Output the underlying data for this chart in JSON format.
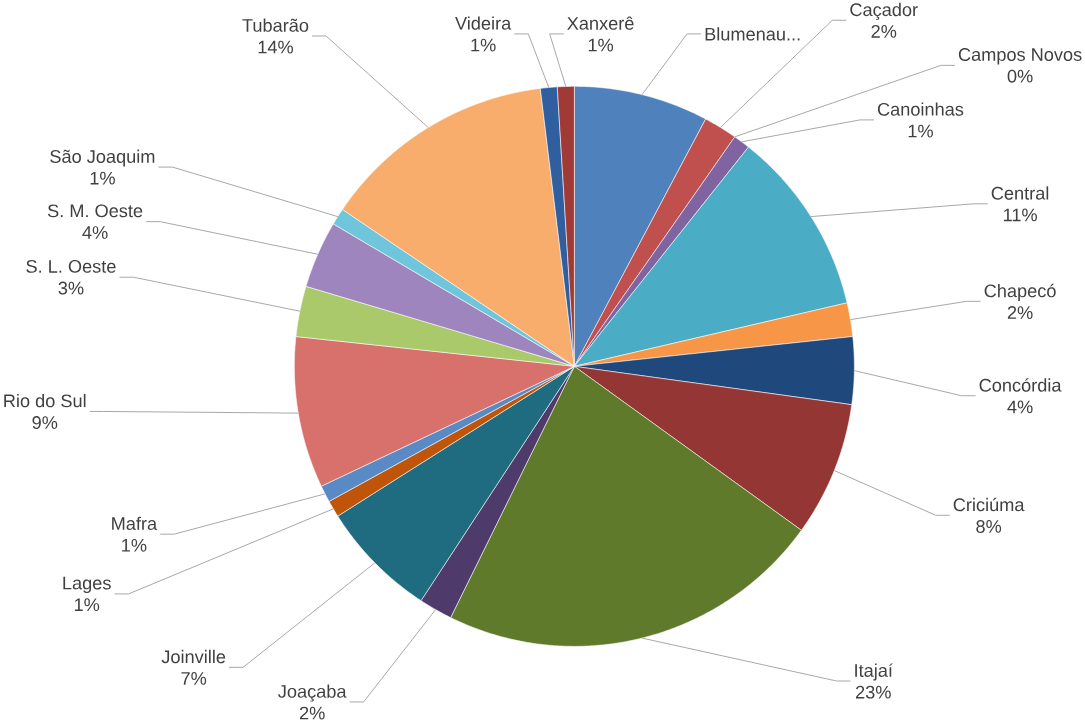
{
  "chart_data": {
    "type": "pie",
    "categories": [
      "Blumenau...",
      "Caçador",
      "Campos Novos",
      "Canoinhas",
      "Central",
      "Chapecó",
      "Concórdia",
      "Criciúma",
      "Itajaí",
      "Joaçaba",
      "Joinville",
      "Lages",
      "Mafra",
      "Rio do Sul",
      "S. L. Oeste",
      "S. M. Oeste",
      "São Joaquim",
      "Tubarão",
      "Videira",
      "Xanxerê"
    ],
    "values": [
      8,
      2,
      0,
      1,
      11,
      2,
      4,
      8,
      23,
      2,
      7,
      1,
      1,
      9,
      3,
      4,
      1,
      14,
      1,
      1
    ],
    "value_labels": [
      null,
      "2%",
      "0%",
      "1%",
      "11%",
      "2%",
      "4%",
      "8%",
      "23%",
      "2%",
      "7%",
      "1%",
      "1%",
      "9%",
      "3%",
      "4%",
      "1%",
      "14%",
      "1%",
      "1%"
    ],
    "colors": [
      "#4F81BD",
      "#C0504D",
      "#9BBB59",
      "#8064A2",
      "#4BACC6",
      "#F79646",
      "#1F497D",
      "#943634",
      "#5F7A2A",
      "#4F3B6B",
      "#1F6B80",
      "#C0550A",
      "#5A8AC6",
      "#D8706C",
      "#A9C96B",
      "#9F85BD",
      "#6FC6DC",
      "#F9AD6C",
      "#2F5F9F",
      "#A03A36"
    ]
  }
}
